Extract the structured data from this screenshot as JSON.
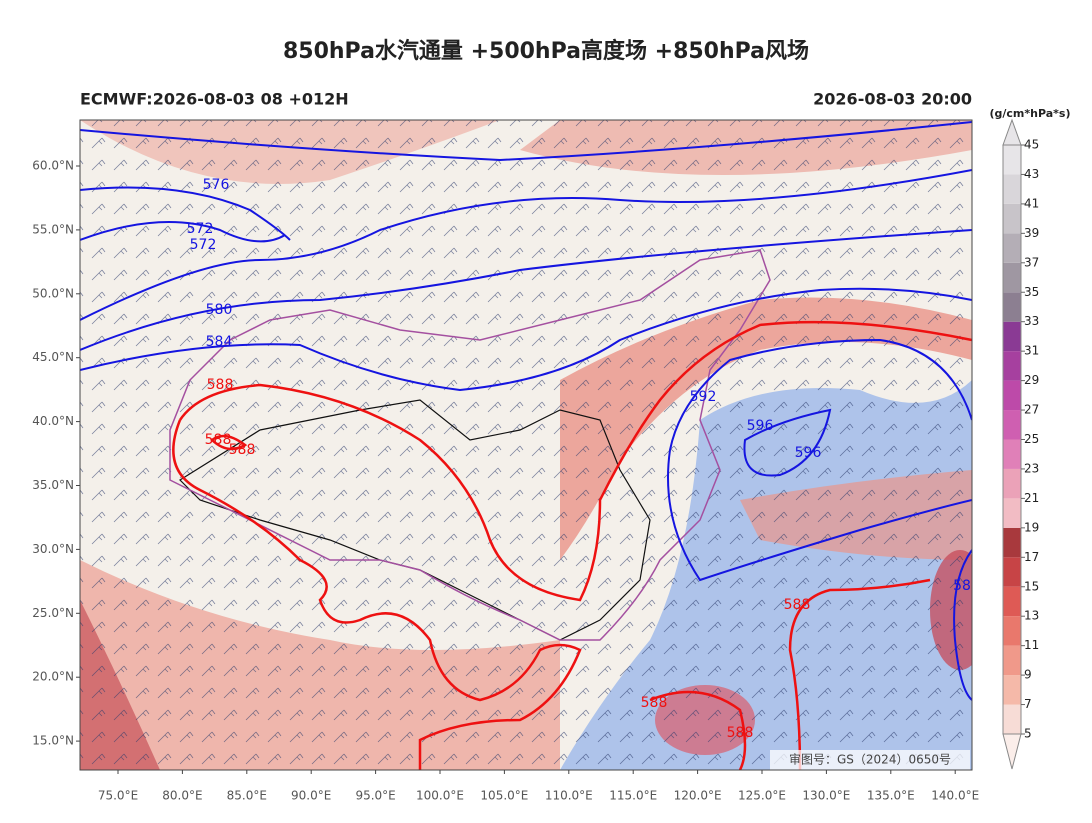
{
  "title": "850hPa水汽通量 +500hPa高度场 +850hPa风场",
  "model_run": "ECMWF:2026-08-03 08 +012H",
  "valid_time": "2026-08-03 20:00",
  "colorbar": {
    "unit": "(g/cm*hPa*s)",
    "ticks": [
      5,
      7,
      9,
      11,
      13,
      15,
      17,
      19,
      21,
      23,
      25,
      27,
      29,
      31,
      33,
      35,
      37,
      39,
      41,
      43,
      45
    ],
    "colors": [
      "#f7dcd6",
      "#f5b9a9",
      "#f0998a",
      "#e9786c",
      "#de5a55",
      "#c74446",
      "#a8393d",
      "#f2bcc4",
      "#eba2b8",
      "#e080b8",
      "#cf5fb1",
      "#bd4aa9",
      "#a6409f",
      "#8a3a94",
      "#8c7f91",
      "#9f97a2",
      "#b4aeb6",
      "#c8c4c9",
      "#d9d6da",
      "#e7e5e8"
    ]
  },
  "map": {
    "lat_labels": [
      "60.0°N",
      "55.0°N",
      "50.0°N",
      "45.0°N",
      "40.0°N",
      "35.0°N",
      "30.0°N",
      "25.0°N",
      "20.0°N",
      "15.0°N"
    ],
    "lon_labels": [
      "75.0°E",
      "80.0°E",
      "85.0°E",
      "90.0°E",
      "95.0°E",
      "100.0°E",
      "105.0°E",
      "110.0°E",
      "115.0°E",
      "120.0°E",
      "125.0°E",
      "130.0°E",
      "135.0°E",
      "140.0°E"
    ],
    "contour_labels": [
      "576",
      "572",
      "572",
      "580",
      "584",
      "588",
      "588",
      "588",
      "592",
      "596",
      "596",
      "588",
      "588",
      "588",
      "58"
    ],
    "approval": "审图号：GS（2024）0650号"
  }
}
